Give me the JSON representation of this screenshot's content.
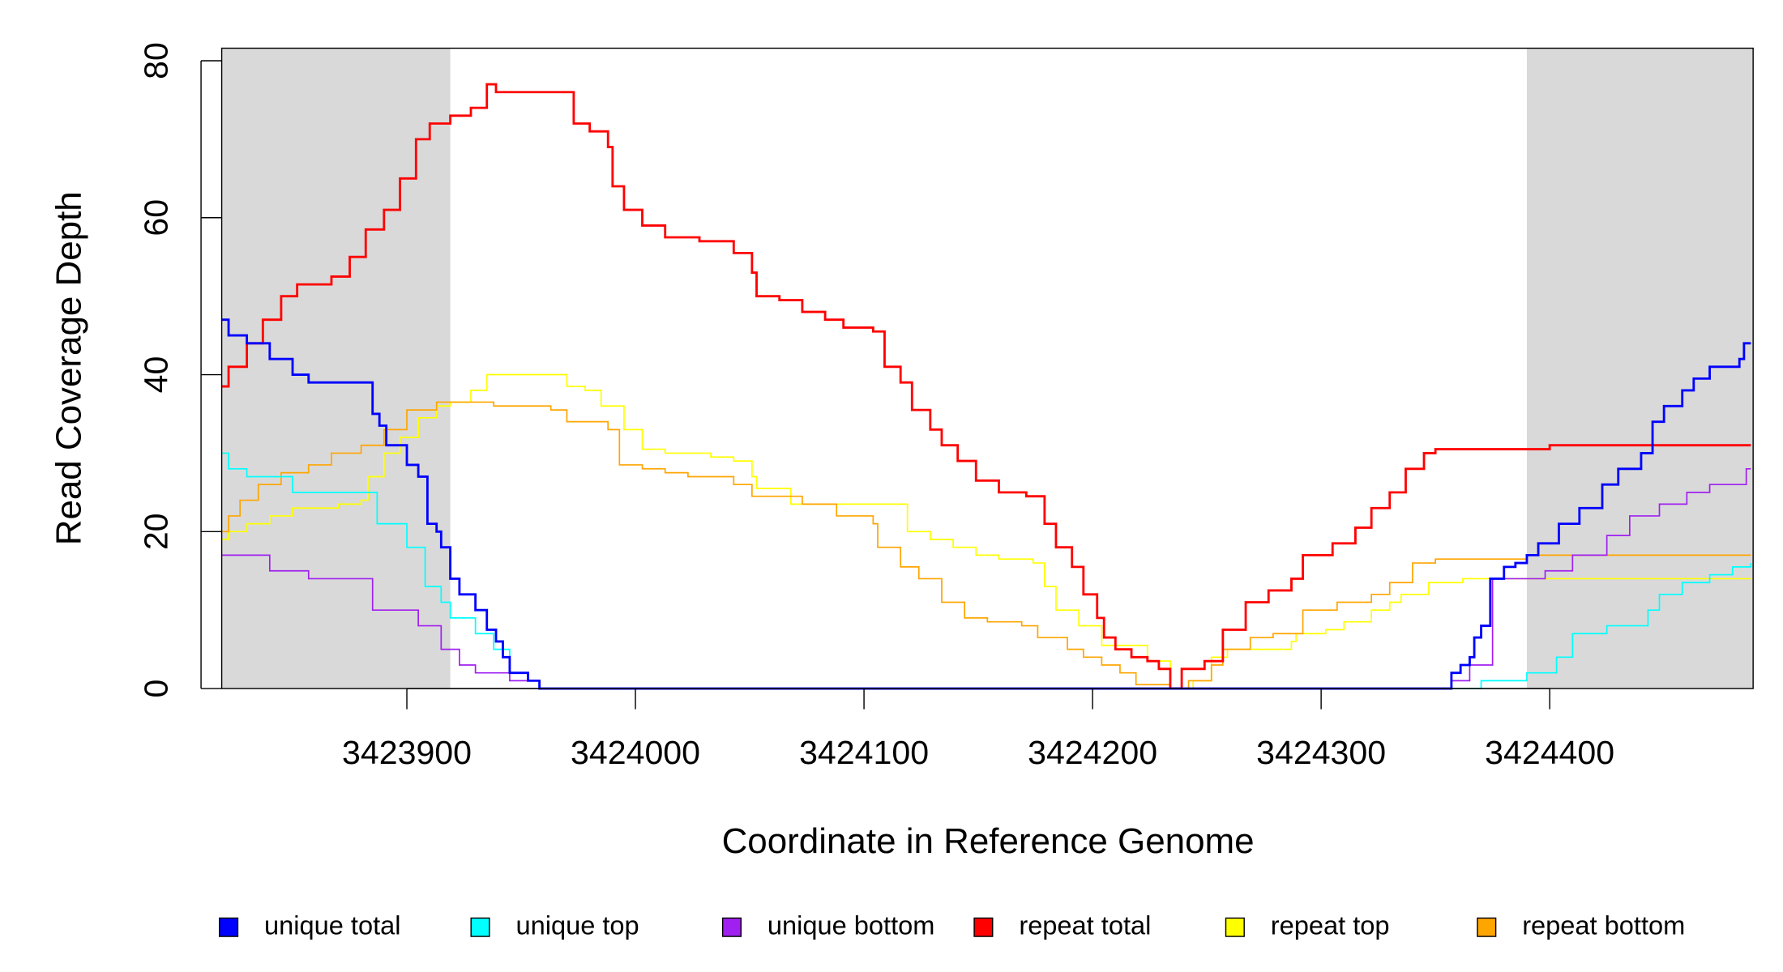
{
  "chart_data": {
    "type": "step",
    "xlabel": "Coordinate in Reference Genome",
    "ylabel": "Read Coverage Depth",
    "xlim": [
      3423819,
      3424489
    ],
    "ylim": [
      0,
      81.6
    ],
    "xticks": [
      3423900,
      3424000,
      3424100,
      3424200,
      3424300,
      3424400
    ],
    "yticks": [
      0,
      20,
      40,
      60,
      80
    ],
    "shaded_regions": [
      [
        3423819,
        3423919
      ],
      [
        3424390,
        3424489
      ]
    ],
    "shade_color": "#d9d9d9",
    "series": [
      {
        "name": "unique total",
        "color": "#0000ff",
        "x": [
          3423819,
          3423822,
          3423830,
          3423840,
          3423850,
          3423857,
          3423883,
          3423885,
          3423888,
          3423891,
          3423900,
          3423905,
          3423909,
          3423913,
          3423915,
          3423919,
          3423923,
          3423930,
          3423935,
          3423939,
          3423942,
          3423945,
          3423953,
          3423958,
          3424355,
          3424357,
          3424361,
          3424365,
          3424367,
          3424370,
          3424374,
          3424380,
          3424385,
          3424390,
          3424395,
          3424404,
          3424413,
          3424423,
          3424430,
          3424440,
          3424445,
          3424450,
          3424458,
          3424463,
          3424470,
          3424483,
          3424485,
          3424488
        ],
        "values": [
          47,
          45,
          44,
          42,
          40,
          39,
          39,
          35,
          33.5,
          31,
          28.5,
          27,
          21,
          20,
          18,
          14,
          12,
          10,
          7.5,
          6,
          4,
          2,
          1,
          0,
          0,
          2,
          3,
          4,
          6.5,
          8,
          14,
          15.5,
          16,
          17,
          18.5,
          21,
          23,
          26,
          28,
          30,
          34,
          36,
          38,
          39.5,
          41,
          42,
          44,
          44
        ]
      },
      {
        "name": "unique top",
        "color": "#00ffff",
        "x": [
          3423819,
          3423822,
          3423830,
          3423850,
          3423880,
          3423887,
          3423900,
          3423908,
          3423915,
          3423919,
          3423930,
          3423938,
          3423945,
          3423953,
          3423958,
          3424367,
          3424370,
          3424385,
          3424390,
          3424403,
          3424410,
          3424425,
          3424443,
          3424448,
          3424458,
          3424470,
          3424480,
          3424488
        ],
        "values": [
          30,
          28,
          27,
          25,
          25,
          21,
          18,
          13,
          11,
          9,
          7,
          5,
          2,
          1,
          0,
          0,
          1,
          1,
          2,
          4,
          7,
          8,
          10,
          12,
          13.5,
          14.5,
          15.5,
          16
        ]
      },
      {
        "name": "unique bottom",
        "color": "#a020f0",
        "x": [
          3423819,
          3423840,
          3423857,
          3423885,
          3423905,
          3423915,
          3423923,
          3423930,
          3423945,
          3423958,
          3424356,
          3424357,
          3424365,
          3424375,
          3424398,
          3424410,
          3424425,
          3424435,
          3424448,
          3424460,
          3424470,
          3424486,
          3424488
        ],
        "values": [
          17,
          15,
          14,
          10,
          8,
          5,
          3,
          2,
          1,
          0,
          0,
          1,
          3,
          14,
          15,
          17,
          19.5,
          22,
          23.5,
          25,
          26,
          28,
          28
        ]
      },
      {
        "name": "repeat total",
        "color": "#ff0000",
        "x": [
          3423819,
          3423822,
          3423830,
          3423837,
          3423845,
          3423852,
          3423867,
          3423875,
          3423882,
          3423890,
          3423897,
          3423904,
          3423910,
          3423919,
          3423928,
          3423935,
          3423939,
          3423963,
          3423973,
          3423980,
          3423988,
          3423990,
          3423995,
          3424003,
          3424013,
          3424028,
          3424043,
          3424051,
          3424053,
          3424063,
          3424073,
          3424083,
          3424091,
          3424104,
          3424109,
          3424116,
          3424121,
          3424129,
          3424134,
          3424141,
          3424149,
          3424159,
          3424171,
          3424179,
          3424184,
          3424191,
          3424196,
          3424202,
          3424205,
          3424210,
          3424217,
          3424224,
          3424229,
          3424234,
          3424239,
          3424249,
          3424257,
          3424267,
          3424277,
          3424287,
          3424292,
          3424305,
          3424315,
          3424322,
          3424330,
          3424337,
          3424345,
          3424350,
          3424390,
          3424400,
          3424488
        ],
        "values": [
          38.5,
          41,
          44,
          47,
          50,
          51.5,
          52.5,
          55,
          58.5,
          61,
          65,
          70,
          72,
          73,
          74,
          77,
          76,
          76,
          72,
          71,
          69,
          64,
          61,
          59,
          57.5,
          57,
          55.5,
          53,
          50,
          49.5,
          48,
          47,
          46,
          45.5,
          41,
          39,
          35.5,
          33,
          31,
          29,
          26.5,
          25,
          24.5,
          21,
          18,
          15.5,
          12,
          9,
          6.5,
          5,
          4,
          3.5,
          2.5,
          0,
          2.5,
          3.5,
          7.5,
          11,
          12.5,
          14,
          17,
          18.5,
          20.5,
          23,
          25,
          28,
          30,
          30.5,
          30.5,
          31,
          31
        ]
      },
      {
        "name": "repeat top",
        "color": "#ffff00",
        "x": [
          3423819,
          3423822,
          3423830,
          3423840,
          3423850,
          3423870,
          3423880,
          3423883,
          3423890,
          3423897,
          3423905,
          3423913,
          3423919,
          3423928,
          3423935,
          3423963,
          3423970,
          3423978,
          3423985,
          3423995,
          3424003,
          3424013,
          3424033,
          3424043,
          3424051,
          3424053,
          3424068,
          3424109,
          3424119,
          3424129,
          3424139,
          3424149,
          3424159,
          3424174,
          3424179,
          3424184,
          3424194,
          3424204,
          3424224,
          3424234,
          3424244,
          3424252,
          3424259,
          3424269,
          3424287,
          3424289,
          3424302,
          3424310,
          3424322,
          3424330,
          3424335,
          3424347,
          3424362,
          3424488
        ],
        "values": [
          19,
          20,
          21,
          22,
          23,
          23.5,
          24,
          27,
          30,
          32,
          34.5,
          36,
          36.5,
          38,
          40,
          40,
          38.5,
          38,
          36,
          33,
          30.5,
          30,
          29.5,
          29,
          27,
          25.5,
          23.5,
          23.5,
          20,
          19,
          18,
          17,
          16.5,
          16,
          13,
          10,
          8,
          5.5,
          3.5,
          0,
          1,
          4,
          5,
          5,
          6,
          7,
          7.5,
          8.5,
          10,
          11,
          12,
          13.5,
          14,
          14
        ]
      },
      {
        "name": "repeat bottom",
        "color": "#ffa500",
        "x": [
          3423819,
          3423822,
          3423827,
          3423835,
          3423845,
          3423857,
          3423867,
          3423880,
          3423890,
          3423900,
          3423913,
          3423928,
          3423938,
          3423963,
          3423970,
          3423988,
          3423993,
          3424003,
          3424013,
          3424023,
          3424043,
          3424051,
          3424073,
          3424088,
          3424104,
          3424106,
          3424116,
          3424124,
          3424134,
          3424144,
          3424154,
          3424169,
          3424176,
          3424189,
          3424196,
          3424204,
          3424212,
          3424219,
          3424234,
          3424242,
          3424252,
          3424257,
          3424269,
          3424279,
          3424292,
          3424307,
          3424322,
          3424330,
          3424340,
          3424350,
          3424390,
          3424488
        ],
        "values": [
          20,
          22,
          24,
          26,
          27.5,
          28.5,
          30,
          31,
          33,
          35.5,
          36.5,
          36.5,
          36,
          35.5,
          34,
          33,
          28.5,
          28,
          27.5,
          27,
          26,
          24.5,
          23.5,
          22,
          21,
          18,
          15.5,
          14,
          11,
          9,
          8.5,
          8,
          6.5,
          5,
          4,
          3,
          2,
          0.5,
          0,
          1,
          3,
          5,
          6.5,
          7,
          10,
          11,
          12,
          13.5,
          16,
          16.5,
          17,
          17
        ]
      }
    ]
  }
}
